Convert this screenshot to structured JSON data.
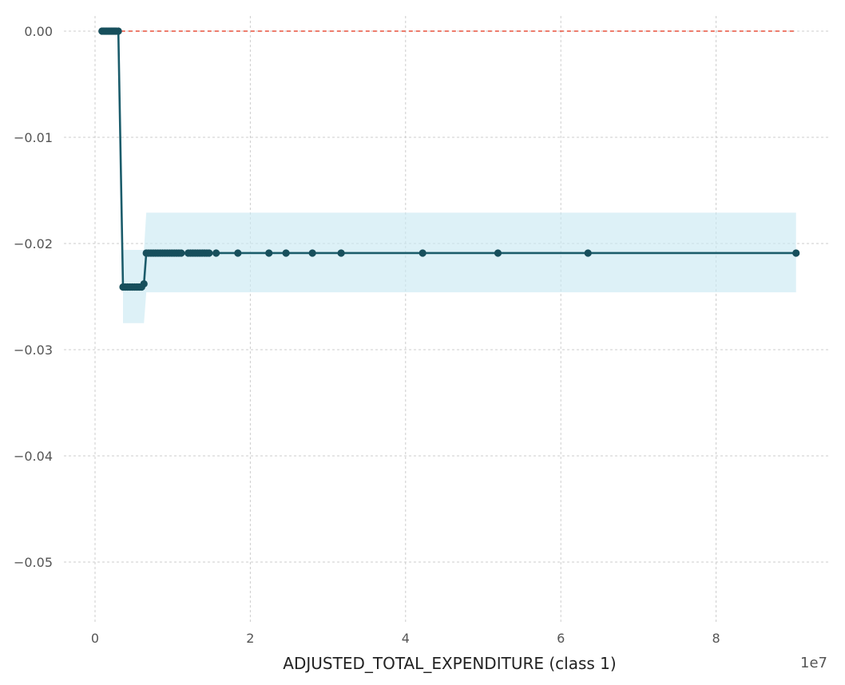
{
  "chart_data": {
    "type": "line",
    "title": "",
    "xlabel": "ADJUSTED_TOTAL_EXPENDITURE (class 1)",
    "ylabel": "",
    "x_offset_label": "1e7",
    "x_scale": 10000000,
    "xlim": [
      0,
      9.3
    ],
    "ylim": [
      -0.0555,
      0.0
    ],
    "x_ticks": [
      0,
      2,
      4,
      6,
      8
    ],
    "x_tick_labels": [
      "0",
      "2",
      "4",
      "6",
      "8"
    ],
    "y_ticks": [
      0.0,
      -0.01,
      -0.02,
      -0.03,
      -0.04,
      -0.05
    ],
    "y_tick_labels": [
      "0.00",
      "−0.01",
      "−0.02",
      "−0.03",
      "−0.04",
      "−0.05"
    ],
    "grid": true,
    "legend": "none",
    "series": [
      {
        "kind": "baseline",
        "y": 0.0,
        "x_range": [
          0.06,
          9.03
        ],
        "color": "#e8513c",
        "dashed": true
      },
      {
        "kind": "band",
        "color": "#cbe9f3",
        "points": [
          {
            "x": 0.36,
            "lower": -0.0275,
            "upper": -0.0206
          },
          {
            "x": 0.63,
            "lower": -0.0275,
            "upper": -0.0206
          },
          {
            "x": 0.66,
            "lower": -0.0246,
            "upper": -0.0171
          },
          {
            "x": 9.03,
            "lower": -0.0246,
            "upper": -0.0171
          }
        ]
      },
      {
        "kind": "line",
        "color": "#1b5c6b",
        "marker_color": "#174f5c",
        "x": [
          0.09,
          0.11,
          0.13,
          0.15,
          0.17,
          0.19,
          0.21,
          0.23,
          0.25,
          0.27,
          0.3,
          0.36,
          0.39,
          0.42,
          0.45,
          0.48,
          0.51,
          0.54,
          0.57,
          0.6,
          0.63,
          0.66,
          0.69,
          0.72,
          0.75,
          0.78,
          0.81,
          0.84,
          0.87,
          0.9,
          0.93,
          0.96,
          0.99,
          1.02,
          1.05,
          1.08,
          1.11,
          1.2,
          1.23,
          1.26,
          1.29,
          1.32,
          1.35,
          1.38,
          1.41,
          1.44,
          1.47,
          1.56,
          1.84,
          2.24,
          2.46,
          2.8,
          3.17,
          4.22,
          5.19,
          6.35,
          9.03
        ],
        "y": [
          0.0,
          0.0,
          0.0,
          0.0,
          0.0,
          0.0,
          0.0,
          0.0,
          0.0,
          0.0,
          0.0,
          -0.0241,
          -0.0241,
          -0.0241,
          -0.0241,
          -0.0241,
          -0.0241,
          -0.0241,
          -0.0241,
          -0.0241,
          -0.0238,
          -0.0209,
          -0.0209,
          -0.0209,
          -0.0209,
          -0.0209,
          -0.0209,
          -0.0209,
          -0.0209,
          -0.0209,
          -0.0209,
          -0.0209,
          -0.0209,
          -0.0209,
          -0.0209,
          -0.0209,
          -0.0209,
          -0.0209,
          -0.0209,
          -0.0209,
          -0.0209,
          -0.0209,
          -0.0209,
          -0.0209,
          -0.0209,
          -0.0209,
          -0.0209,
          -0.0209,
          -0.0209,
          -0.0209,
          -0.0209,
          -0.0209,
          -0.0209,
          -0.0209,
          -0.0209,
          -0.0209,
          -0.0209
        ]
      }
    ]
  },
  "colors": {
    "grid": "#cccccc",
    "tick_text": "#555555",
    "axis_label": "#222222"
  }
}
